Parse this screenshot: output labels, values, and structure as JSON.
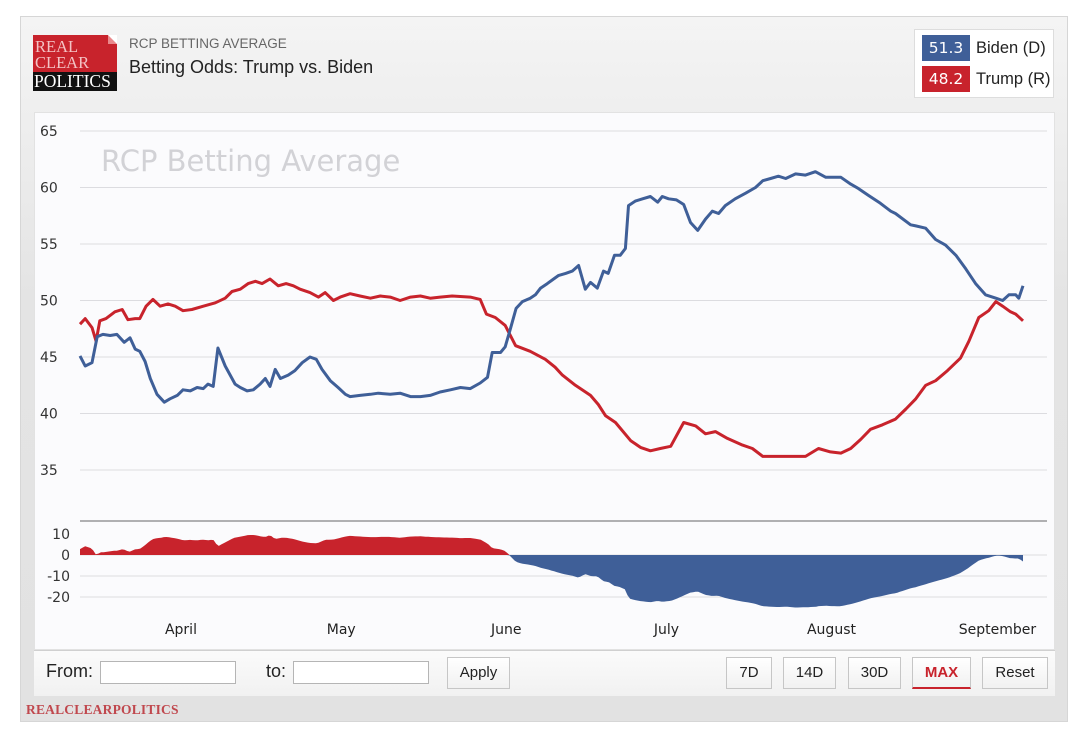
{
  "header": {
    "logo_lines": [
      "REAL",
      "CLEAR",
      "POLITICS"
    ],
    "subtitle": "RCP BETTING AVERAGE",
    "title": "Betting Odds: Trump vs. Biden"
  },
  "legend": {
    "items": [
      {
        "value": "51.3",
        "label": "Biden (D)",
        "color": "#3f5f98"
      },
      {
        "value": "48.2",
        "label": "Trump (R)",
        "color": "#c8232c"
      }
    ]
  },
  "controls": {
    "from_label": "From:",
    "from_value": "",
    "to_label": "to:",
    "to_value": "",
    "apply_label": "Apply",
    "range_buttons": [
      "7D",
      "14D",
      "30D",
      "MAX"
    ],
    "active_range": "MAX",
    "reset_label": "Reset"
  },
  "footer": {
    "brand": "REALCLEARPOLITICS"
  },
  "chart_data": {
    "type": "line",
    "title": "Betting Odds: Trump vs. Biden",
    "watermark": "RCP Betting Average",
    "x_unit": "days since start of range",
    "xlim": [
      0,
      181.2
    ],
    "ylim": [
      35,
      65
    ],
    "yticks": [
      65,
      60,
      55,
      50,
      45,
      40,
      35
    ],
    "grid": true,
    "legend_position": "top-right",
    "month_ticks": [
      {
        "label": "April",
        "day": 19.4
      },
      {
        "label": "May",
        "day": 50.2
      },
      {
        "label": "June",
        "day": 81.9
      },
      {
        "label": "July",
        "day": 112.7
      },
      {
        "label": "August",
        "day": 144.4
      },
      {
        "label": "September",
        "day": 176.3
      }
    ],
    "series": [
      {
        "name": "Biden (D)",
        "color": "#3f5f98",
        "last": 51.3,
        "points": [
          [
            0,
            45.1
          ],
          [
            1,
            44.2
          ],
          [
            2.3,
            44.5
          ],
          [
            3.3,
            46.8
          ],
          [
            4.4,
            47.0
          ],
          [
            5.8,
            46.9
          ],
          [
            7.1,
            47.0
          ],
          [
            8.5,
            46.3
          ],
          [
            9.6,
            46.7
          ],
          [
            10.6,
            45.7
          ],
          [
            11.5,
            45.5
          ],
          [
            12.5,
            44.6
          ],
          [
            13.5,
            43.1
          ],
          [
            14.8,
            41.7
          ],
          [
            16.2,
            41.0
          ],
          [
            17.3,
            41.3
          ],
          [
            18.7,
            41.6
          ],
          [
            19.8,
            42.1
          ],
          [
            21.2,
            42.0
          ],
          [
            22.5,
            42.3
          ],
          [
            23.7,
            42.2
          ],
          [
            24.6,
            42.6
          ],
          [
            25.6,
            42.4
          ],
          [
            26.5,
            45.8
          ],
          [
            27.9,
            44.2
          ],
          [
            29.8,
            42.6
          ],
          [
            30.8,
            42.3
          ],
          [
            32.1,
            42.0
          ],
          [
            33.3,
            42.1
          ],
          [
            34.6,
            42.6
          ],
          [
            35.6,
            43.1
          ],
          [
            36.5,
            42.4
          ],
          [
            37.5,
            43.9
          ],
          [
            38.5,
            43.1
          ],
          [
            40,
            43.4
          ],
          [
            41.3,
            43.8
          ],
          [
            42.7,
            44.5
          ],
          [
            44.2,
            45.0
          ],
          [
            45.4,
            44.8
          ],
          [
            46.5,
            43.9
          ],
          [
            48.1,
            42.9
          ],
          [
            49.6,
            42.3
          ],
          [
            51,
            41.7
          ],
          [
            51.9,
            41.5
          ],
          [
            53.8,
            41.6
          ],
          [
            55.8,
            41.7
          ],
          [
            57.3,
            41.8
          ],
          [
            59.6,
            41.7
          ],
          [
            61.5,
            41.8
          ],
          [
            63.5,
            41.5
          ],
          [
            65.4,
            41.5
          ],
          [
            67.3,
            41.6
          ],
          [
            69.2,
            41.9
          ],
          [
            71.2,
            42.1
          ],
          [
            73.1,
            42.3
          ],
          [
            75,
            42.2
          ],
          [
            76.9,
            42.7
          ],
          [
            78.3,
            43.2
          ],
          [
            79.2,
            45.4
          ],
          [
            80.8,
            45.4
          ],
          [
            81.7,
            45.9
          ],
          [
            82.7,
            47.5
          ],
          [
            83.8,
            49.3
          ],
          [
            85,
            49.9
          ],
          [
            86.5,
            50.2
          ],
          [
            87.5,
            50.5
          ],
          [
            88.5,
            51.1
          ],
          [
            89.8,
            51.5
          ],
          [
            91,
            51.9
          ],
          [
            91.9,
            52.2
          ],
          [
            93.3,
            52.4
          ],
          [
            94.6,
            52.6
          ],
          [
            95.8,
            53.1
          ],
          [
            97.1,
            51.0
          ],
          [
            98.1,
            51.6
          ],
          [
            99.4,
            51.1
          ],
          [
            100.6,
            52.6
          ],
          [
            101.5,
            52.4
          ],
          [
            102.7,
            54.0
          ],
          [
            103.8,
            54.0
          ],
          [
            104.8,
            54.6
          ],
          [
            105.4,
            58.4
          ],
          [
            106.7,
            58.8
          ],
          [
            108.1,
            59.0
          ],
          [
            109.6,
            59.2
          ],
          [
            111,
            58.7
          ],
          [
            111.9,
            59.2
          ],
          [
            113.1,
            59.0
          ],
          [
            114.6,
            58.9
          ],
          [
            116,
            58.5
          ],
          [
            117.3,
            56.9
          ],
          [
            118.7,
            56.2
          ],
          [
            120.2,
            57.2
          ],
          [
            121.5,
            57.9
          ],
          [
            122.7,
            57.7
          ],
          [
            124,
            58.4
          ],
          [
            125.9,
            59.0
          ],
          [
            127.9,
            59.5
          ],
          [
            129.8,
            60.0
          ],
          [
            131.2,
            60.6
          ],
          [
            132.7,
            60.8
          ],
          [
            134.2,
            61.0
          ],
          [
            135.6,
            60.8
          ],
          [
            137.5,
            61.2
          ],
          [
            139.4,
            61.1
          ],
          [
            141.3,
            61.4
          ],
          [
            143.3,
            60.9
          ],
          [
            146.2,
            60.9
          ],
          [
            148.1,
            60.3
          ],
          [
            149.6,
            59.9
          ],
          [
            151.5,
            59.3
          ],
          [
            153.8,
            58.6
          ],
          [
            155.8,
            57.9
          ],
          [
            156.7,
            57.7
          ],
          [
            159.6,
            56.7
          ],
          [
            160.6,
            56.6
          ],
          [
            162.5,
            56.4
          ],
          [
            164.4,
            55.4
          ],
          [
            166.3,
            54.9
          ],
          [
            168.3,
            54.0
          ],
          [
            170.2,
            52.8
          ],
          [
            172.1,
            51.5
          ],
          [
            174,
            50.5
          ],
          [
            176,
            50.2
          ],
          [
            177.3,
            50.0
          ],
          [
            178.5,
            50.5
          ],
          [
            179.8,
            50.5
          ],
          [
            180.4,
            50.2
          ],
          [
            181.2,
            51.3
          ]
        ]
      },
      {
        "name": "Trump (R)",
        "color": "#c8232c",
        "last": 48.2,
        "points": [
          [
            0,
            47.9
          ],
          [
            1,
            48.4
          ],
          [
            2.3,
            47.6
          ],
          [
            3.1,
            46.4
          ],
          [
            3.8,
            48.2
          ],
          [
            5,
            48.4
          ],
          [
            6.7,
            49.0
          ],
          [
            8.1,
            49.2
          ],
          [
            9.2,
            48.3
          ],
          [
            10.6,
            48.4
          ],
          [
            11.5,
            48.4
          ],
          [
            12.7,
            49.5
          ],
          [
            14,
            50.1
          ],
          [
            15.4,
            49.5
          ],
          [
            16.9,
            49.7
          ],
          [
            18.3,
            49.5
          ],
          [
            19.8,
            49.1
          ],
          [
            21.5,
            49.2
          ],
          [
            23.7,
            49.5
          ],
          [
            26,
            49.8
          ],
          [
            27.9,
            50.2
          ],
          [
            29.2,
            50.8
          ],
          [
            30.8,
            51.0
          ],
          [
            32.3,
            51.5
          ],
          [
            33.7,
            51.7
          ],
          [
            35,
            51.5
          ],
          [
            36.5,
            51.9
          ],
          [
            38.1,
            51.3
          ],
          [
            39.6,
            51.5
          ],
          [
            41,
            51.3
          ],
          [
            42.3,
            51.0
          ],
          [
            44.2,
            50.7
          ],
          [
            45.8,
            50.3
          ],
          [
            47.1,
            50.7
          ],
          [
            48.7,
            50.0
          ],
          [
            50,
            50.3
          ],
          [
            51.9,
            50.6
          ],
          [
            53.8,
            50.4
          ],
          [
            55.8,
            50.2
          ],
          [
            57.7,
            50.4
          ],
          [
            59.6,
            50.3
          ],
          [
            61.5,
            50.0
          ],
          [
            63.5,
            50.3
          ],
          [
            65.4,
            50.4
          ],
          [
            67.3,
            50.2
          ],
          [
            69.2,
            50.3
          ],
          [
            71.5,
            50.4
          ],
          [
            75,
            50.3
          ],
          [
            76.9,
            50.1
          ],
          [
            78.1,
            48.8
          ],
          [
            79.8,
            48.5
          ],
          [
            81.7,
            47.8
          ],
          [
            83.7,
            46.0
          ],
          [
            86.5,
            45.5
          ],
          [
            89.4,
            44.8
          ],
          [
            91.3,
            44.1
          ],
          [
            92.7,
            43.4
          ],
          [
            95.2,
            42.5
          ],
          [
            98.1,
            41.6
          ],
          [
            99.6,
            40.8
          ],
          [
            101,
            39.8
          ],
          [
            102.9,
            39.2
          ],
          [
            105.8,
            37.6
          ],
          [
            107.7,
            37.0
          ],
          [
            109.6,
            36.7
          ],
          [
            111.5,
            36.9
          ],
          [
            113.5,
            37.1
          ],
          [
            116,
            39.2
          ],
          [
            118.3,
            38.9
          ],
          [
            120.2,
            38.2
          ],
          [
            122.1,
            38.4
          ],
          [
            124.4,
            37.8
          ],
          [
            127.3,
            37.2
          ],
          [
            129.2,
            36.9
          ],
          [
            131.2,
            36.2
          ],
          [
            133.7,
            36.2
          ],
          [
            136.5,
            36.2
          ],
          [
            139.4,
            36.2
          ],
          [
            141.9,
            36.9
          ],
          [
            144.2,
            36.6
          ],
          [
            146.2,
            36.5
          ],
          [
            148.1,
            36.9
          ],
          [
            150,
            37.7
          ],
          [
            151.9,
            38.6
          ],
          [
            154.2,
            39.0
          ],
          [
            156.7,
            39.5
          ],
          [
            158.7,
            40.4
          ],
          [
            160.6,
            41.3
          ],
          [
            162.5,
            42.5
          ],
          [
            164.4,
            42.9
          ],
          [
            166.7,
            43.8
          ],
          [
            169.2,
            44.9
          ],
          [
            170.8,
            46.4
          ],
          [
            172.7,
            48.5
          ],
          [
            174.6,
            49.1
          ],
          [
            176,
            49.9
          ],
          [
            177.3,
            49.5
          ],
          [
            178.8,
            49.0
          ],
          [
            179.8,
            48.8
          ],
          [
            181.2,
            48.2
          ]
        ]
      }
    ],
    "spread": {
      "definition": "Trump (R) minus Biden (D)",
      "ylim": [
        -26,
        16
      ],
      "yticks": [
        10,
        0,
        -10,
        -20
      ],
      "positive_color": "#c8232c",
      "negative_color": "#3f5f98"
    }
  }
}
